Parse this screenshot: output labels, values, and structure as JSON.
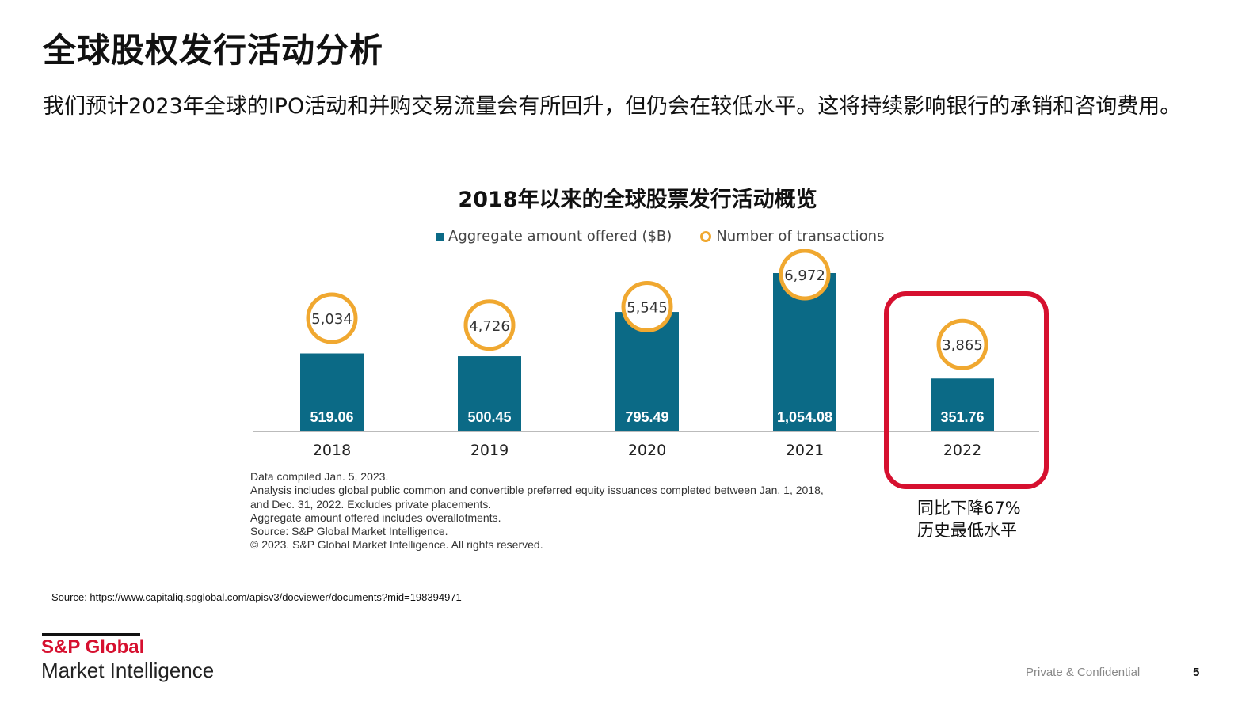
{
  "title": "全球股权发行活动分析",
  "subtitle": "我们预计2023年全球的IPO活动和并购交易流量会有所回升，但仍会在较低水平。这将持续影响银行的承销和咨询费用。",
  "chart_data": {
    "type": "bar",
    "title": "2018年以来的全球股票发行活动概览",
    "categories": [
      "2018",
      "2019",
      "2020",
      "2021",
      "2022"
    ],
    "series": [
      {
        "name": "Aggregate amount offered ($B)",
        "type": "bar",
        "values": [
          519.06,
          500.45,
          795.49,
          1054.08,
          351.76
        ],
        "labels": [
          "519.06",
          "500.45",
          "795.49",
          "1,054.08",
          "351.76"
        ],
        "color": "#0b6a86"
      },
      {
        "name": "Number of transactions",
        "type": "scatter",
        "values": [
          5034,
          4726,
          5545,
          6972,
          3865
        ],
        "labels": [
          "5,034",
          "4,726",
          "5,545",
          "6,972",
          "3,865"
        ],
        "color": "#f0a830"
      }
    ],
    "legend": "top",
    "grid": false,
    "highlight": "2022"
  },
  "notes": [
    "Data compiled Jan. 5, 2023.",
    "Analysis includes global public common and convertible preferred equity issuances completed between Jan. 1, 2018,",
    "and Dec. 31, 2022. Excludes private placements.",
    "Aggregate amount offered includes overallotments.",
    "Source: S&P Global Market Intelligence.",
    "© 2023. S&P Global Market Intelligence. All rights reserved."
  ],
  "callout": [
    "同比下降67%",
    "历史最低水平"
  ],
  "source": {
    "label": "Source: ",
    "link": "https://www.capitaliq.spglobal.com/apisv3/docviewer/documents?mid=198394971"
  },
  "logo": {
    "line1": "S&P Global",
    "line2": "Market Intelligence"
  },
  "footer": {
    "confidential": "Private & Confidential",
    "page": "5"
  }
}
